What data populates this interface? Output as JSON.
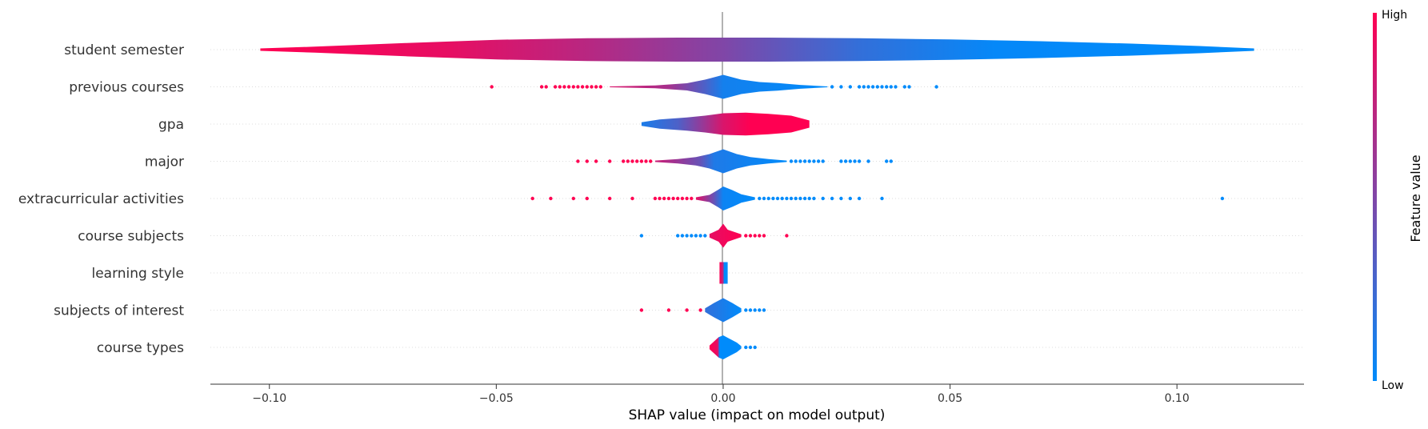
{
  "chart_data": {
    "type": "violin",
    "xlabel": "SHAP value (impact on model output)",
    "xlim": [
      -0.113,
      0.128
    ],
    "xticks": [
      -0.1,
      -0.05,
      0.0,
      0.05,
      0.1
    ],
    "xtick_labels": [
      "−0.10",
      "−0.05",
      "0.00",
      "0.05",
      "0.10"
    ],
    "colorbar": {
      "label": "Feature value",
      "high_label": "High",
      "low_label": "Low",
      "high_color": "#ff0052",
      "low_color": "#008bfb"
    },
    "features": [
      {
        "name": "student semester",
        "range": [
          -0.102,
          0.117
        ],
        "profile": [
          [
            -0.102,
            0.1
          ],
          [
            -0.09,
            0.25
          ],
          [
            -0.07,
            0.55
          ],
          [
            -0.05,
            0.82
          ],
          [
            -0.03,
            0.95
          ],
          [
            -0.01,
            1.0
          ],
          [
            0.01,
            1.0
          ],
          [
            0.03,
            0.95
          ],
          [
            0.05,
            0.85
          ],
          [
            0.07,
            0.7
          ],
          [
            0.09,
            0.5
          ],
          [
            0.105,
            0.3
          ],
          [
            0.117,
            0.1
          ]
        ],
        "color_by_x": [
          [
            -0.102,
            1.0
          ],
          [
            -0.06,
            0.9
          ],
          [
            -0.03,
            0.72
          ],
          [
            0.0,
            0.5
          ],
          [
            0.03,
            0.2
          ],
          [
            0.06,
            0.02
          ],
          [
            0.117,
            0.0
          ]
        ],
        "outliers": []
      },
      {
        "name": "previous courses",
        "range": [
          -0.025,
          0.023
        ],
        "profile": [
          [
            -0.025,
            0.03
          ],
          [
            -0.015,
            0.12
          ],
          [
            -0.008,
            0.3
          ],
          [
            -0.004,
            0.6
          ],
          [
            0.0,
            1.0
          ],
          [
            0.004,
            0.6
          ],
          [
            0.008,
            0.4
          ],
          [
            0.012,
            0.32
          ],
          [
            0.017,
            0.16
          ],
          [
            0.023,
            0.03
          ]
        ],
        "color_by_x": [
          [
            -0.025,
            0.85
          ],
          [
            -0.012,
            0.65
          ],
          [
            -0.004,
            0.3
          ],
          [
            0.0,
            0.08
          ],
          [
            0.023,
            0.0
          ]
        ],
        "outliers": [
          [
            -0.051,
            1
          ],
          [
            -0.04,
            1
          ],
          [
            -0.039,
            1
          ],
          [
            -0.037,
            1
          ],
          [
            -0.036,
            1
          ],
          [
            -0.035,
            1
          ],
          [
            -0.034,
            1
          ],
          [
            -0.033,
            1
          ],
          [
            -0.032,
            1
          ],
          [
            -0.031,
            1
          ],
          [
            -0.03,
            1
          ],
          [
            -0.029,
            1
          ],
          [
            -0.028,
            1
          ],
          [
            -0.027,
            1
          ],
          [
            0.024,
            0
          ],
          [
            0.026,
            0
          ],
          [
            0.028,
            0
          ],
          [
            0.03,
            0
          ],
          [
            0.031,
            0
          ],
          [
            0.032,
            0
          ],
          [
            0.033,
            0
          ],
          [
            0.034,
            0
          ],
          [
            0.035,
            0
          ],
          [
            0.036,
            0
          ],
          [
            0.037,
            0
          ],
          [
            0.038,
            0
          ],
          [
            0.04,
            0
          ],
          [
            0.041,
            0
          ],
          [
            0.047,
            0
          ]
        ]
      },
      {
        "name": "gpa",
        "range": [
          -0.018,
          0.019
        ],
        "profile": [
          [
            -0.018,
            0.15
          ],
          [
            -0.014,
            0.38
          ],
          [
            -0.008,
            0.55
          ],
          [
            -0.004,
            0.7
          ],
          [
            0.0,
            0.9
          ],
          [
            0.005,
            0.95
          ],
          [
            0.01,
            0.85
          ],
          [
            0.015,
            0.7
          ],
          [
            0.019,
            0.3
          ]
        ],
        "color_by_x": [
          [
            -0.018,
            0.1
          ],
          [
            -0.01,
            0.3
          ],
          [
            -0.004,
            0.62
          ],
          [
            0.0,
            0.85
          ],
          [
            0.006,
            1.0
          ],
          [
            0.019,
            1.0
          ]
        ],
        "outliers": []
      },
      {
        "name": "major",
        "range": [
          -0.015,
          0.014
        ],
        "profile": [
          [
            -0.015,
            0.06
          ],
          [
            -0.01,
            0.18
          ],
          [
            -0.006,
            0.35
          ],
          [
            -0.003,
            0.6
          ],
          [
            0.0,
            1.0
          ],
          [
            0.003,
            0.6
          ],
          [
            0.006,
            0.35
          ],
          [
            0.01,
            0.18
          ],
          [
            0.014,
            0.06
          ]
        ],
        "color_by_x": [
          [
            -0.015,
            0.8
          ],
          [
            -0.005,
            0.4
          ],
          [
            -0.002,
            0.12
          ],
          [
            0.014,
            0.0
          ]
        ],
        "outliers": [
          [
            -0.032,
            1
          ],
          [
            -0.03,
            1
          ],
          [
            -0.028,
            1
          ],
          [
            -0.025,
            1
          ],
          [
            -0.022,
            1
          ],
          [
            -0.021,
            1
          ],
          [
            -0.02,
            1
          ],
          [
            -0.019,
            1
          ],
          [
            -0.018,
            1
          ],
          [
            -0.017,
            1
          ],
          [
            -0.016,
            1
          ],
          [
            0.015,
            0
          ],
          [
            0.016,
            0
          ],
          [
            0.017,
            0
          ],
          [
            0.018,
            0
          ],
          [
            0.019,
            0
          ],
          [
            0.02,
            0
          ],
          [
            0.021,
            0
          ],
          [
            0.022,
            0
          ],
          [
            0.026,
            0
          ],
          [
            0.027,
            0
          ],
          [
            0.028,
            0
          ],
          [
            0.029,
            0
          ],
          [
            0.03,
            0
          ],
          [
            0.032,
            0
          ],
          [
            0.036,
            0
          ],
          [
            0.037,
            0
          ]
        ]
      },
      {
        "name": "extracurricular activities",
        "range": [
          -0.006,
          0.007
        ],
        "profile": [
          [
            -0.006,
            0.1
          ],
          [
            -0.003,
            0.3
          ],
          [
            -0.001,
            0.75
          ],
          [
            0.0,
            1.0
          ],
          [
            0.002,
            0.7
          ],
          [
            0.004,
            0.35
          ],
          [
            0.007,
            0.1
          ]
        ],
        "color_by_x": [
          [
            -0.006,
            0.9
          ],
          [
            -0.002,
            0.4
          ],
          [
            0.0,
            0.05
          ],
          [
            0.007,
            0.0
          ]
        ],
        "outliers": [
          [
            -0.042,
            1
          ],
          [
            -0.038,
            1
          ],
          [
            -0.033,
            1
          ],
          [
            -0.03,
            1
          ],
          [
            -0.025,
            1
          ],
          [
            -0.02,
            1
          ],
          [
            -0.015,
            1
          ],
          [
            -0.014,
            1
          ],
          [
            -0.013,
            1
          ],
          [
            -0.012,
            1
          ],
          [
            -0.011,
            1
          ],
          [
            -0.01,
            1
          ],
          [
            -0.009,
            1
          ],
          [
            -0.008,
            1
          ],
          [
            -0.007,
            1
          ],
          [
            0.008,
            0
          ],
          [
            0.009,
            0
          ],
          [
            0.01,
            0
          ],
          [
            0.011,
            0
          ],
          [
            0.012,
            0
          ],
          [
            0.013,
            0
          ],
          [
            0.014,
            0
          ],
          [
            0.015,
            0
          ],
          [
            0.016,
            0
          ],
          [
            0.017,
            0
          ],
          [
            0.018,
            0
          ],
          [
            0.019,
            0
          ],
          [
            0.02,
            0
          ],
          [
            0.022,
            0
          ],
          [
            0.024,
            0
          ],
          [
            0.026,
            0
          ],
          [
            0.028,
            0
          ],
          [
            0.03,
            0
          ],
          [
            0.035,
            0
          ],
          [
            0.11,
            0
          ]
        ]
      },
      {
        "name": "course subjects",
        "range": [
          -0.003,
          0.004
        ],
        "profile": [
          [
            -0.003,
            0.15
          ],
          [
            -0.001,
            0.5
          ],
          [
            0.0,
            1.0
          ],
          [
            0.001,
            0.5
          ],
          [
            0.004,
            0.12
          ]
        ],
        "color_by_x": [
          [
            -0.003,
            0.9
          ],
          [
            0.004,
            1.0
          ]
        ],
        "outliers": [
          [
            -0.018,
            0
          ],
          [
            -0.01,
            0
          ],
          [
            -0.009,
            0
          ],
          [
            -0.008,
            0
          ],
          [
            -0.007,
            0
          ],
          [
            -0.006,
            0
          ],
          [
            -0.005,
            0
          ],
          [
            -0.004,
            0
          ],
          [
            0.005,
            1
          ],
          [
            0.006,
            1
          ],
          [
            0.007,
            1
          ],
          [
            0.008,
            1
          ],
          [
            0.009,
            1
          ],
          [
            0.014,
            1
          ]
        ]
      },
      {
        "name": "learning style",
        "range": [
          -0.0008,
          0.001
        ],
        "profile": [
          [
            -0.0008,
            0.9
          ],
          [
            0.001,
            0.9
          ]
        ],
        "color_by_x": [
          [
            -0.0008,
            1.0
          ],
          [
            0.0,
            0.7
          ],
          [
            0.0002,
            0.0
          ],
          [
            0.001,
            0.0
          ]
        ],
        "outliers": []
      },
      {
        "name": "subjects of interest",
        "range": [
          -0.004,
          0.004
        ],
        "profile": [
          [
            -0.004,
            0.15
          ],
          [
            -0.002,
            0.6
          ],
          [
            0.0,
            1.0
          ],
          [
            0.002,
            0.6
          ],
          [
            0.004,
            0.15
          ]
        ],
        "color_by_x": [
          [
            -0.004,
            0.2
          ],
          [
            0.004,
            0.0
          ]
        ],
        "outliers": [
          [
            -0.018,
            1
          ],
          [
            -0.012,
            1
          ],
          [
            -0.008,
            1
          ],
          [
            -0.005,
            1
          ],
          [
            0.005,
            0
          ],
          [
            0.006,
            0
          ],
          [
            0.007,
            0
          ],
          [
            0.008,
            0
          ],
          [
            0.009,
            0
          ]
        ]
      },
      {
        "name": "course types",
        "range": [
          -0.003,
          0.004
        ],
        "profile": [
          [
            -0.003,
            0.15
          ],
          [
            -0.002,
            0.5
          ],
          [
            -0.001,
            0.85
          ],
          [
            0.0,
            1.0
          ],
          [
            0.001,
            0.8
          ],
          [
            0.003,
            0.4
          ],
          [
            0.004,
            0.1
          ]
        ],
        "color_by_x": [
          [
            -0.003,
            1.0
          ],
          [
            -0.0012,
            0.9
          ],
          [
            -0.0008,
            0.0
          ],
          [
            0.004,
            0.0
          ]
        ],
        "outliers": [
          [
            0.005,
            0
          ],
          [
            0.006,
            0
          ],
          [
            0.007,
            0
          ]
        ]
      }
    ]
  }
}
